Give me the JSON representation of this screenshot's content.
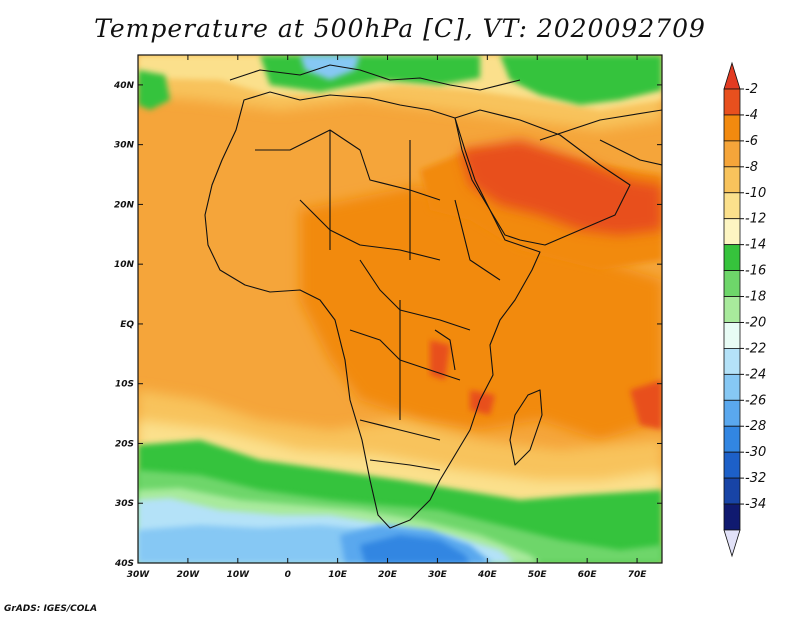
{
  "title": "Temperature at 500hPa [C], VT: 2020092709",
  "credit": "GrADS: IGES/COLA",
  "map": {
    "lon_labels": [
      "30W",
      "20W",
      "10W",
      "0",
      "10E",
      "20E",
      "30E",
      "40E",
      "50E",
      "60E",
      "70E"
    ],
    "lat_labels": [
      "40N",
      "30N",
      "20N",
      "10N",
      "EQ",
      "10S",
      "20S",
      "30S",
      "40S"
    ],
    "extent": {
      "lon_min": -30,
      "lon_max": 75,
      "lat_min": -40,
      "lat_max": 45
    }
  },
  "colorbar": {
    "labels": [
      "-2",
      "-4",
      "-6",
      "-8",
      "-10",
      "-12",
      "-14",
      "-16",
      "-18",
      "-20",
      "-22",
      "-24",
      "-26",
      "-28",
      "-30",
      "-32",
      "-34"
    ],
    "colors": [
      "#e8501e",
      "#f28a0f",
      "#f5a53a",
      "#f8c35c",
      "#fbe08c",
      "#fdf5c2",
      "#36c33c",
      "#6ed66a",
      "#a8ea9c",
      "#e8fcf5",
      "#b4e2f8",
      "#86c8f4",
      "#5aa8ee",
      "#3286e2",
      "#1d60c8",
      "#1844a6",
      "#101a70"
    ],
    "top_arrow_color": "#e23b22",
    "bottom_arrow_color": "#e2e2f8"
  }
}
